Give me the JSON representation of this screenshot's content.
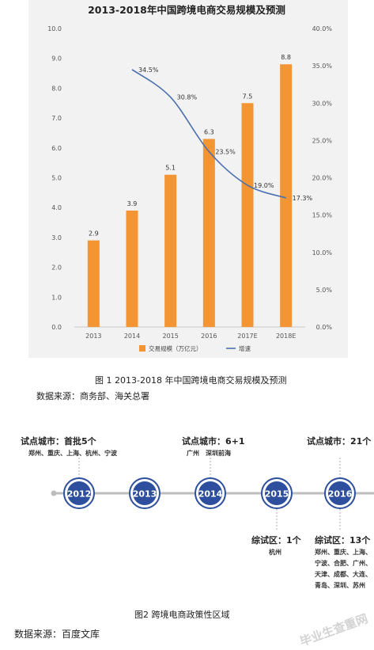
{
  "chart_data": {
    "type": "bar+line",
    "title": "2013-2018年中国跨境电商交易规模及预测",
    "categories": [
      "2013",
      "2014",
      "2015",
      "2016",
      "2017E",
      "2018E"
    ],
    "series": [
      {
        "name": "交易规模（万亿元）",
        "type": "bar",
        "axis": "left",
        "color": "#f39533",
        "values": [
          2.9,
          3.9,
          5.1,
          6.3,
          7.5,
          8.8
        ],
        "labels": [
          "2.9",
          "3.9",
          "5.1",
          "6.3",
          "7.5",
          "8.8"
        ]
      },
      {
        "name": "增速",
        "type": "line",
        "axis": "right",
        "color": "#4b6fb0",
        "values": [
          null,
          34.5,
          30.8,
          23.5,
          19.0,
          17.3
        ],
        "labels": [
          "",
          "34.5%",
          "30.8%",
          "23.5%",
          "19.0%",
          "17.3%"
        ]
      }
    ],
    "y_left": {
      "min": 0,
      "max": 10,
      "ticks": [
        "0.0",
        "1.0",
        "2.0",
        "3.0",
        "4.0",
        "5.0",
        "6.0",
        "7.0",
        "8.0",
        "9.0",
        "10.0"
      ]
    },
    "y_right": {
      "min": 0,
      "max": 40,
      "ticks": [
        "0.0%",
        "5.0%",
        "10.0%",
        "15.0%",
        "20.0%",
        "25.0%",
        "30.0%",
        "35.0%",
        "40.0%"
      ]
    },
    "legend_position": "bottom",
    "grid": false
  },
  "caption1": "图 1    2013-2018 年中国跨境电商交易规模及预测",
  "source1": "数据来源：商务部、海关总署",
  "timeline": {
    "years": [
      "2012",
      "2013",
      "2014",
      "2015",
      "2016"
    ],
    "above": [
      {
        "title": "试点城市：首批5个",
        "detail": "郑州、重庆、上海、杭州、宁波"
      },
      null,
      {
        "title": "试点城市：6+1",
        "detail": "广州　深圳前海"
      },
      null,
      {
        "title": "试点城市：21个",
        "detail": ""
      }
    ],
    "below": [
      null,
      null,
      null,
      {
        "title": "综试区：1个",
        "detail": [
          "杭州"
        ]
      },
      {
        "title": "综试区：13个",
        "detail": [
          "郑州、重庆、上海、",
          "宁波、合肥、广州、",
          "天津、成都、大连、",
          "青岛、深圳、苏州"
        ]
      }
    ],
    "colors": {
      "circle": "#2d4f9e",
      "line": "#bdbdbd"
    }
  },
  "caption2": "图2    跨境电商政策性区域",
  "source2": "数据来源：百度文库",
  "watermark": "毕业生查重网"
}
